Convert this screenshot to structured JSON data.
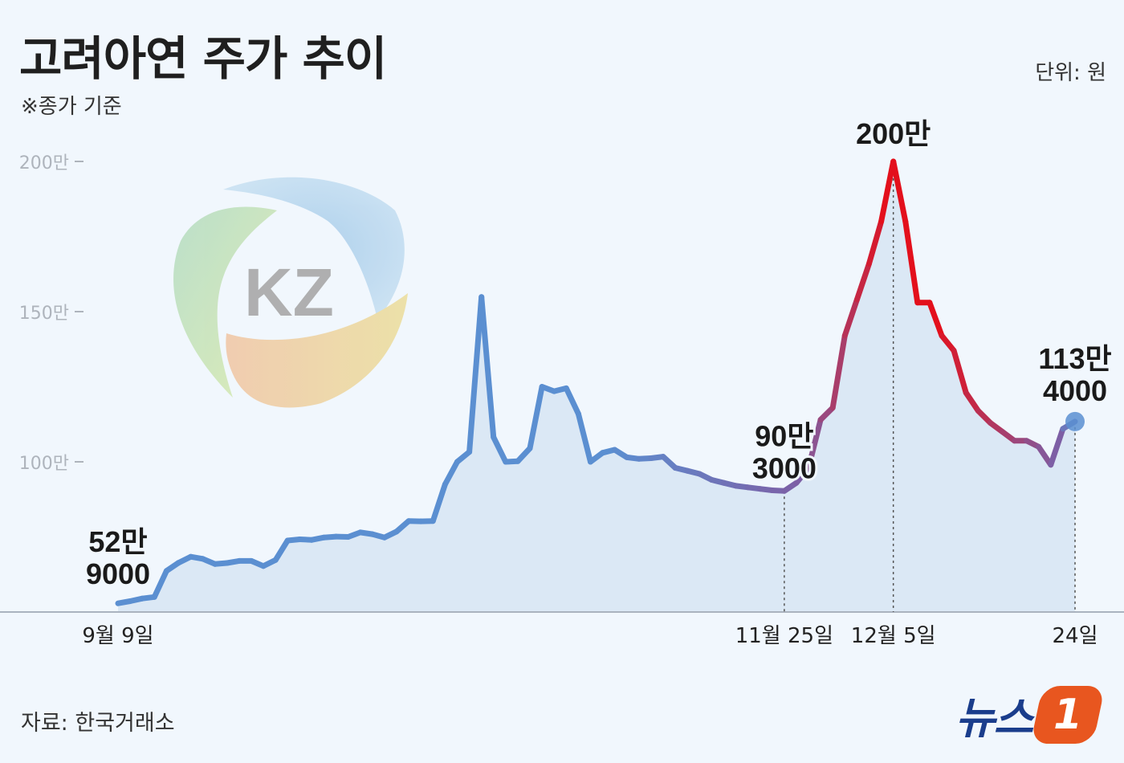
{
  "header": {
    "title": "고려아연 주가 추이",
    "subtitle": "※종가 기준",
    "unit": "단위: 원"
  },
  "footer": {
    "source": "자료: 한국거래소",
    "brand_text": "뉴스",
    "brand_badge": "1"
  },
  "logo": {
    "text": "KZ"
  },
  "colors": {
    "line_start": "#5b8fd1",
    "line_peak": "#e3101c",
    "line_end": "#7d5fa5",
    "area_fill": "#dbe8f5",
    "background": "#f1f7fd",
    "axis": "#aab3bf"
  },
  "chart_data": {
    "type": "line",
    "title": "고려아연 주가 추이",
    "ylim": [
      500000,
      2000000
    ],
    "y_ticks": [
      {
        "value": 1000000,
        "label": "100만"
      },
      {
        "value": 1500000,
        "label": "150만"
      },
      {
        "value": 2000000,
        "label": "200만"
      }
    ],
    "x_ticks": [
      {
        "index": 0,
        "label": "9월 9일"
      },
      {
        "index": 55,
        "label": "11월 25일"
      },
      {
        "index": 64,
        "label": "12월 5일"
      },
      {
        "index": 79,
        "label": "24일"
      }
    ],
    "annotations": [
      {
        "index": 0,
        "lines": [
          "52만",
          "9000"
        ]
      },
      {
        "index": 55,
        "lines": [
          "90만",
          "3000"
        ]
      },
      {
        "index": 64,
        "lines": [
          "200만"
        ]
      },
      {
        "index": 79,
        "lines": [
          "113만",
          "4000"
        ]
      }
    ],
    "series": [
      {
        "values": [
          529000,
          536000,
          545000,
          550000,
          637000,
          664000,
          684000,
          677000,
          660000,
          663000,
          670000,
          670000,
          653000,
          673000,
          738000,
          742000,
          740000,
          748000,
          751000,
          750000,
          765000,
          759000,
          748000,
          768000,
          803000,
          802000,
          803000,
          925000,
          1000000,
          1033000,
          1549000,
          1082000,
          1000000,
          1002000,
          1045000,
          1250000,
          1235000,
          1245000,
          1160000,
          1000000,
          1030000,
          1040000,
          1015000,
          1010000,
          1012000,
          1017000,
          980000,
          970000,
          960000,
          940000,
          930000,
          920000,
          915000,
          910000,
          905000,
          903000,
          930000,
          980000,
          1140000,
          1180000,
          1420000,
          1540000,
          1660000,
          1800000,
          2000000,
          1800000,
          1530000,
          1530000,
          1420000,
          1370000,
          1230000,
          1170000,
          1130000,
          1100000,
          1070000,
          1070000,
          1050000,
          990000,
          1110000,
          1134000
        ]
      }
    ]
  }
}
